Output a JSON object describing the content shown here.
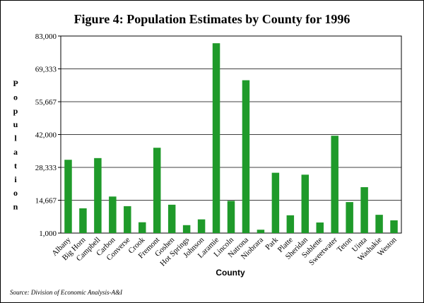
{
  "chart_data": {
    "type": "bar",
    "title": "Figure 4:  Population Estimates by County for 1996",
    "xlabel": "County",
    "ylabel": "Population",
    "y_tick_labels": [
      "1,000",
      "14,667",
      "28,333",
      "42,000",
      "55,667",
      "69,333",
      "83,000"
    ],
    "ylim": [
      1000,
      83000
    ],
    "grid": true,
    "categories": [
      "Albany",
      "Big Horn",
      "Campbell",
      "Carbon",
      "Converse",
      "Crook",
      "Fremont",
      "Goshen",
      "Hot Springs",
      "Johnson",
      "Laramie",
      "Lincoln",
      "Natrona",
      "Niobrara",
      "Park",
      "Platte",
      "Sheridan",
      "Sublette",
      "Sweetwater",
      "Teton",
      "Uinta",
      "Washakie",
      "Weston"
    ],
    "values": [
      31500,
      11300,
      32200,
      16200,
      12200,
      5500,
      36500,
      12800,
      4300,
      6700,
      80000,
      14400,
      64600,
      2400,
      26100,
      8400,
      25300,
      5400,
      41500,
      13900,
      20100,
      8600,
      6300
    ],
    "bar_color": "#1f9a2a",
    "source": "Source:  Division of Economic Analysis-A&I"
  }
}
